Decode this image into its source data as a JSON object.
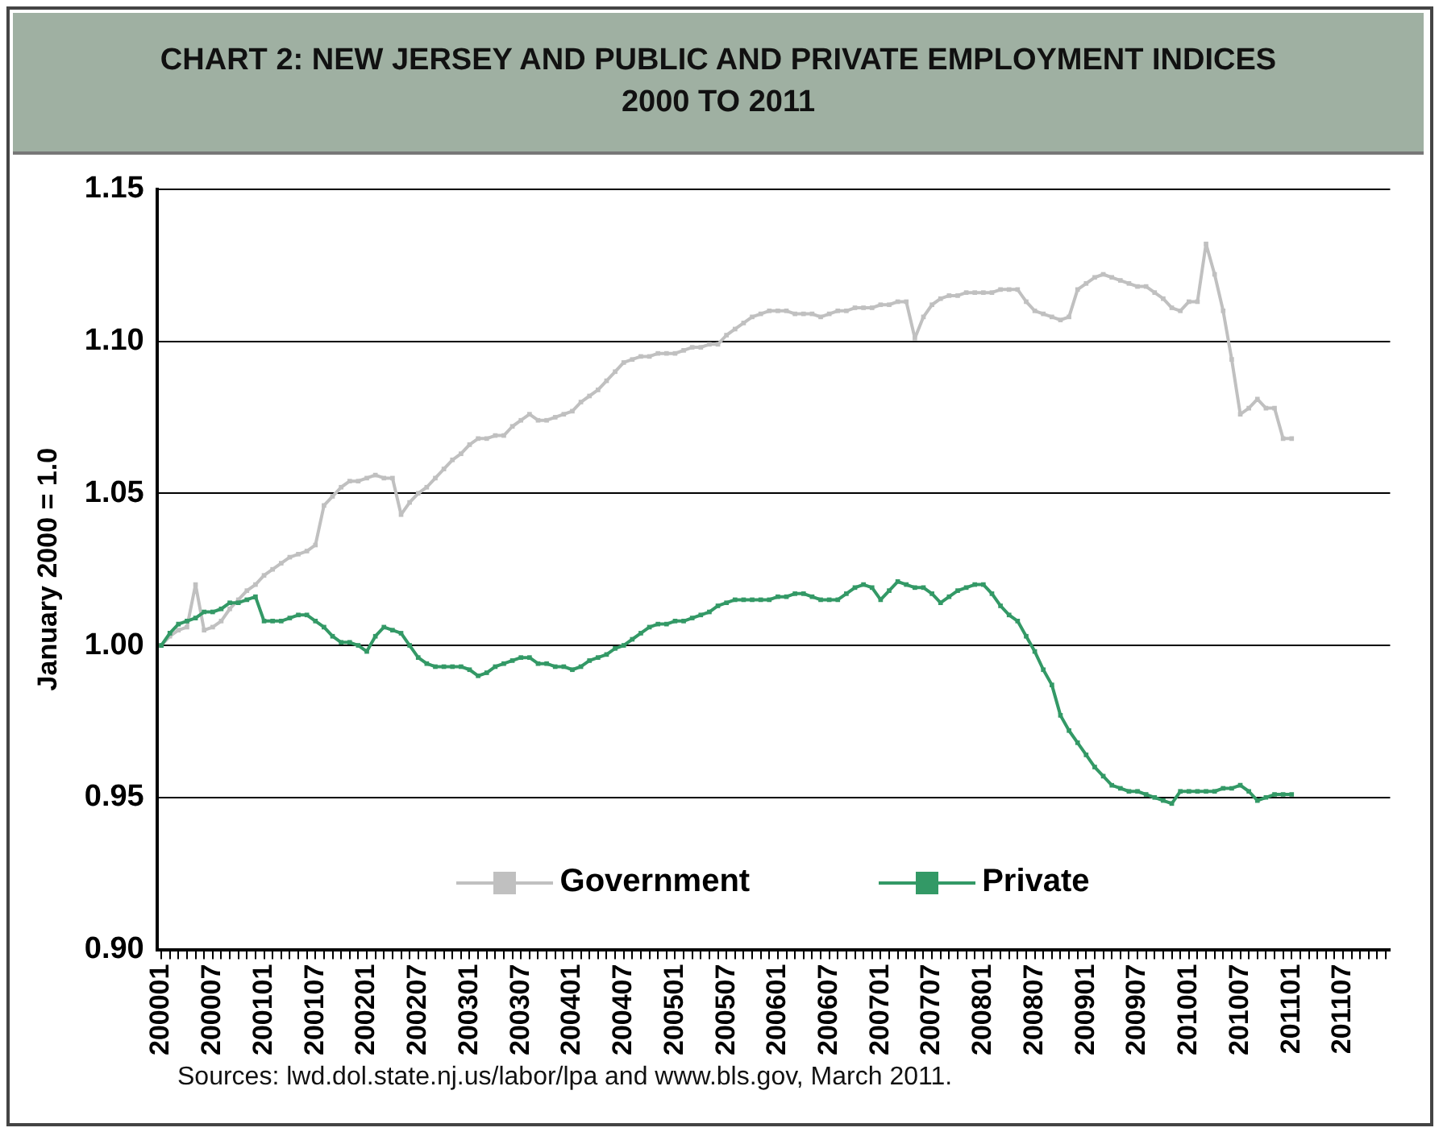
{
  "chart_data": {
    "type": "line",
    "title": "CHART 2: NEW JERSEY AND PUBLIC AND PRIVATE EMPLOYMENT INDICES 2000 TO 2011",
    "ylabel": "January 2000 = 1.0",
    "annotations": [
      "Sources:  lwd.dol.state.nj.us/labor/lpa and www.bls.gov, March 2011."
    ],
    "categories": [
      "200001",
      null,
      null,
      null,
      null,
      null,
      "200007",
      null,
      null,
      null,
      null,
      null,
      "200101",
      null,
      null,
      null,
      null,
      null,
      "200107",
      null,
      null,
      null,
      null,
      null,
      "200201",
      null,
      null,
      null,
      null,
      null,
      "200207",
      null,
      null,
      null,
      null,
      null,
      "200301",
      null,
      null,
      null,
      null,
      null,
      "200307",
      null,
      null,
      null,
      null,
      null,
      "200401",
      null,
      null,
      null,
      null,
      null,
      "200407",
      null,
      null,
      null,
      null,
      null,
      "200501",
      null,
      null,
      null,
      null,
      null,
      "200507",
      null,
      null,
      null,
      null,
      null,
      "200601",
      null,
      null,
      null,
      null,
      null,
      "200607",
      null,
      null,
      null,
      null,
      null,
      "200701",
      null,
      null,
      null,
      null,
      null,
      "200707",
      null,
      null,
      null,
      null,
      null,
      "200801",
      null,
      null,
      null,
      null,
      null,
      "200807",
      null,
      null,
      null,
      null,
      null,
      "200901",
      null,
      null,
      null,
      null,
      null,
      "200907",
      null,
      null,
      null,
      null,
      null,
      "201001",
      null,
      null,
      null,
      null,
      null,
      "201007",
      null,
      null,
      null,
      null,
      null,
      "201101",
      null,
      null,
      null,
      null,
      null,
      "201107",
      null,
      null,
      null,
      null,
      null
    ],
    "series": [
      {
        "name": "Government",
        "color": "#c0c0c0",
        "values": [
          1.0,
          1.003,
          1.005,
          1.006,
          1.02,
          1.005,
          1.006,
          1.008,
          1.012,
          1.015,
          1.018,
          1.02,
          1.023,
          1.025,
          1.027,
          1.029,
          1.03,
          1.031,
          1.033,
          1.046,
          1.049,
          1.052,
          1.054,
          1.054,
          1.055,
          1.056,
          1.055,
          1.055,
          1.043,
          1.047,
          1.05,
          1.052,
          1.055,
          1.058,
          1.061,
          1.063,
          1.066,
          1.068,
          1.068,
          1.069,
          1.069,
          1.072,
          1.074,
          1.076,
          1.074,
          1.074,
          1.075,
          1.076,
          1.077,
          1.08,
          1.082,
          1.084,
          1.087,
          1.09,
          1.093,
          1.094,
          1.095,
          1.095,
          1.096,
          1.096,
          1.096,
          1.097,
          1.098,
          1.098,
          1.099,
          1.099,
          1.102,
          1.104,
          1.106,
          1.108,
          1.109,
          1.11,
          1.11,
          1.11,
          1.109,
          1.109,
          1.109,
          1.108,
          1.109,
          1.11,
          1.11,
          1.111,
          1.111,
          1.111,
          1.112,
          1.112,
          1.113,
          1.113,
          1.101,
          1.108,
          1.112,
          1.114,
          1.115,
          1.115,
          1.116,
          1.116,
          1.116,
          1.116,
          1.117,
          1.117,
          1.117,
          1.113,
          1.11,
          1.109,
          1.108,
          1.107,
          1.108,
          1.117,
          1.119,
          1.121,
          1.122,
          1.121,
          1.12,
          1.119,
          1.118,
          1.118,
          1.116,
          1.114,
          1.111,
          1.11,
          1.113,
          1.113,
          1.132,
          1.122,
          1.11,
          1.094,
          1.076,
          1.078,
          1.081,
          1.078,
          1.078,
          1.068,
          1.068,
          null,
          null,
          null,
          null,
          null,
          null,
          null,
          null,
          null,
          null,
          null
        ]
      },
      {
        "name": "Private",
        "color": "#339966",
        "values": [
          1.0,
          1.004,
          1.007,
          1.008,
          1.009,
          1.011,
          1.011,
          1.012,
          1.014,
          1.014,
          1.015,
          1.016,
          1.008,
          1.008,
          1.008,
          1.009,
          1.01,
          1.01,
          1.008,
          1.006,
          1.003,
          1.001,
          1.001,
          1.0,
          0.998,
          1.003,
          1.006,
          1.005,
          1.004,
          1.0,
          0.996,
          0.994,
          0.993,
          0.993,
          0.993,
          0.993,
          0.992,
          0.99,
          0.991,
          0.993,
          0.994,
          0.995,
          0.996,
          0.996,
          0.994,
          0.994,
          0.993,
          0.993,
          0.992,
          0.993,
          0.995,
          0.996,
          0.997,
          0.999,
          1.0,
          1.002,
          1.004,
          1.006,
          1.007,
          1.007,
          1.008,
          1.008,
          1.009,
          1.01,
          1.011,
          1.013,
          1.014,
          1.015,
          1.015,
          1.015,
          1.015,
          1.015,
          1.016,
          1.016,
          1.017,
          1.017,
          1.016,
          1.015,
          1.015,
          1.015,
          1.017,
          1.019,
          1.02,
          1.019,
          1.015,
          1.018,
          1.021,
          1.02,
          1.019,
          1.019,
          1.017,
          1.014,
          1.016,
          1.018,
          1.019,
          1.02,
          1.02,
          1.017,
          1.013,
          1.01,
          1.008,
          1.003,
          0.998,
          0.992,
          0.987,
          0.977,
          0.972,
          0.968,
          0.964,
          0.96,
          0.957,
          0.954,
          0.953,
          0.952,
          0.952,
          0.951,
          0.95,
          0.949,
          0.948,
          0.952,
          0.952,
          0.952,
          0.952,
          0.952,
          0.953,
          0.953,
          0.954,
          0.952,
          0.949,
          0.95,
          0.951,
          0.951,
          0.951,
          null,
          null,
          null,
          null,
          null,
          null,
          null,
          null,
          null,
          null,
          null
        ]
      }
    ],
    "ylim": [
      0.9,
      1.15
    ],
    "yticks": [
      {
        "value": 0.9,
        "label": "0.90"
      },
      0.95,
      {
        "value": 1.0,
        "label": "1.00"
      },
      1.05,
      {
        "value": 1.1,
        "label": "1.10"
      },
      1.15
    ],
    "grid": "y",
    "legend": "bottom",
    "marker": "square"
  }
}
